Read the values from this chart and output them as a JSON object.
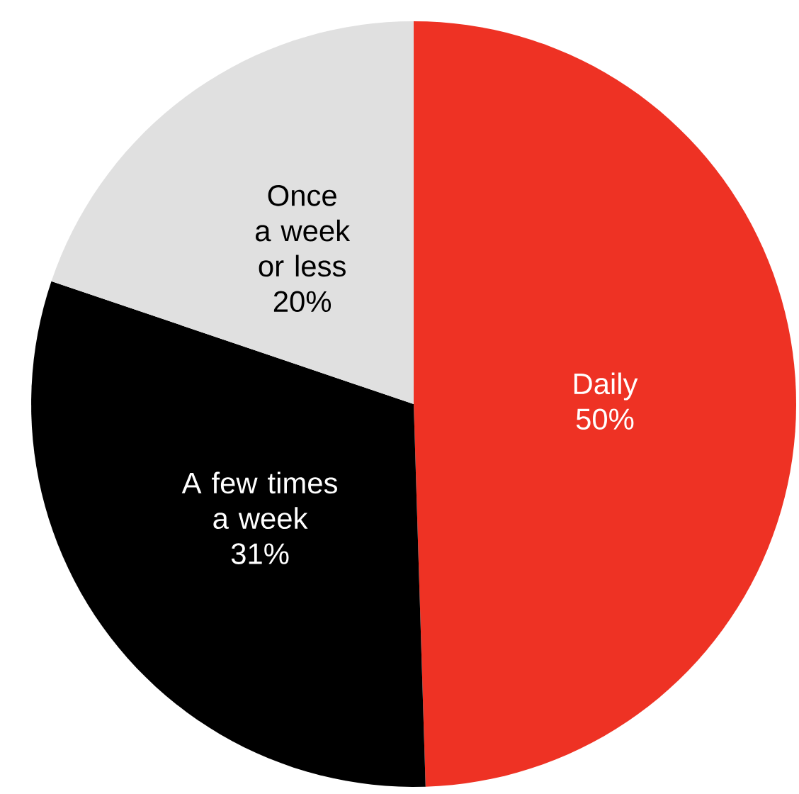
{
  "chart_data": {
    "type": "pie",
    "categories": [
      "Daily",
      "A few times a week",
      "Once a week or less"
    ],
    "values": [
      50,
      31,
      20
    ],
    "value_labels": [
      "50%",
      "31%",
      "20%"
    ],
    "colors": [
      "#ee3224",
      "#000000",
      "#e0e0e0"
    ]
  }
}
